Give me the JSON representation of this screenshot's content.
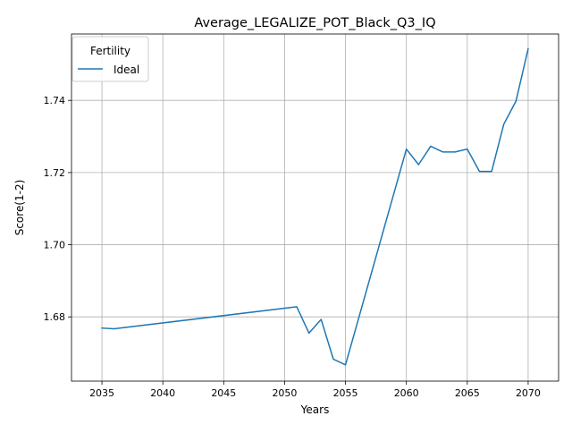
{
  "chart_data": {
    "type": "line",
    "title": "Average_LEGALIZE_POT_Black_Q3_IQ",
    "xlabel": "Years",
    "ylabel": "Score(1-2)",
    "xlim": [
      2032.5,
      2072.5
    ],
    "ylim": [
      1.6622,
      1.7584
    ],
    "grid": true,
    "legend": {
      "title": "Fertility",
      "placement": "upper-left"
    },
    "x_ticks": [
      2035,
      2040,
      2045,
      2050,
      2055,
      2060,
      2065,
      2070
    ],
    "y_ticks": [
      1.68,
      1.7,
      1.72,
      1.74
    ],
    "x_tick_labels": [
      "2035",
      "2040",
      "2045",
      "2050",
      "2055",
      "2060",
      "2065",
      "2070"
    ],
    "y_tick_labels": [
      "1.68",
      "1.70",
      "1.72",
      "1.74"
    ],
    "series": [
      {
        "name": "Ideal",
        "color": "#1f77b4",
        "x": [
          2035,
          2036,
          2051,
          2052,
          2053,
          2054,
          2055,
          2060,
          2061,
          2062,
          2063,
          2064,
          2065,
          2066,
          2067,
          2068,
          2069,
          2070
        ],
        "y": [
          1.6769,
          1.6767,
          1.6828,
          1.6755,
          1.6793,
          1.6683,
          1.6667,
          1.7265,
          1.7222,
          1.7273,
          1.7257,
          1.7257,
          1.7265,
          1.7203,
          1.7203,
          1.7334,
          1.7398,
          1.7543
        ]
      }
    ]
  }
}
